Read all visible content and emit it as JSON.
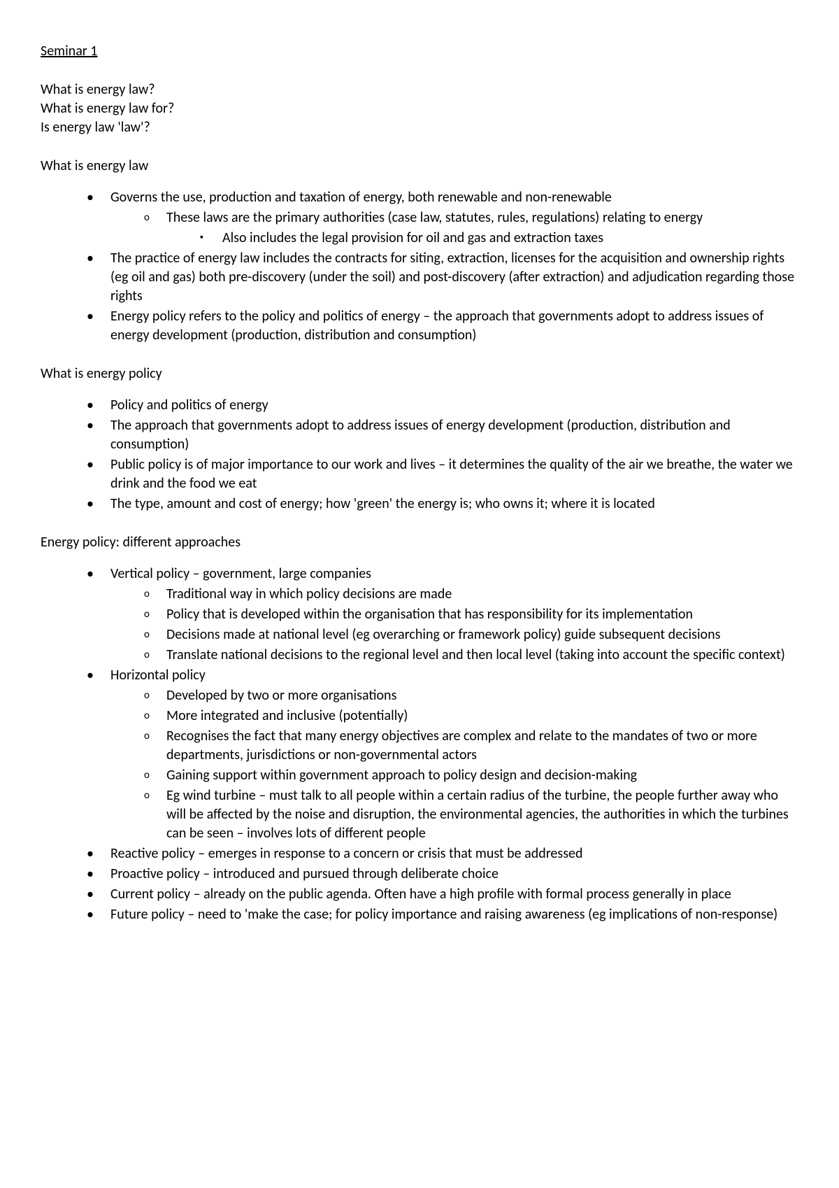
{
  "title": "Seminar 1",
  "intro": {
    "line1": "What is energy law?",
    "line2": "What is energy law for?",
    "line3": "Is energy law 'law'?"
  },
  "section1": {
    "heading": "What is energy law",
    "items": [
      {
        "text": "Governs the use, production and taxation of energy, both renewable and non-renewable",
        "sub": [
          {
            "text": "These laws are the primary authorities (case law, statutes, rules, regulations) relating to energy",
            "sub": [
              {
                "text": "Also includes the legal provision for oil and gas and extraction taxes"
              }
            ]
          }
        ]
      },
      {
        "text": "The practice of energy law includes the contracts for siting, extraction, licenses for the acquisition and ownership rights (eg oil and gas) both pre-discovery (under the soil) and post-discovery (after extraction) and adjudication regarding those rights"
      },
      {
        "text": "Energy policy refers to the policy and politics of energy – the approach that governments adopt to address issues of energy development (production, distribution and consumption)"
      }
    ]
  },
  "section2": {
    "heading": "What is energy policy",
    "items": [
      {
        "text": "Policy and politics of energy"
      },
      {
        "text": "The approach that governments adopt to address issues of energy development (production, distribution and consumption)"
      },
      {
        "text": "Public policy is of major importance to our work and lives – it determines the quality of the air we breathe, the water we drink and the food we eat"
      },
      {
        "text": "The type, amount and cost of energy; how 'green' the energy is; who owns it; where it is located"
      }
    ]
  },
  "section3": {
    "heading": "Energy policy: different approaches",
    "items": [
      {
        "text": "Vertical policy – government, large companies",
        "sub": [
          {
            "text": "Traditional way in which policy decisions are made"
          },
          {
            "text": "Policy that is developed within the organisation that has responsibility for its implementation"
          },
          {
            "text": "Decisions made at national level (eg overarching or framework policy) guide subsequent decisions"
          },
          {
            "text": "Translate national decisions to the regional level and then local level (taking into account the specific context)"
          }
        ]
      },
      {
        "text": "Horizontal policy",
        "sub": [
          {
            "text": "Developed by two or more organisations"
          },
          {
            "text": "More integrated and inclusive (potentially)"
          },
          {
            "text": "Recognises the fact that many energy objectives are complex and relate to the mandates of two or more departments, jurisdictions or non-governmental actors"
          },
          {
            "text": "Gaining support within government approach to policy design and decision-making"
          },
          {
            "text": "Eg wind turbine – must talk to all people within a certain radius of the turbine, the people further away who will be affected by the noise and disruption, the environmental agencies, the authorities in which the turbines can be seen – involves lots of different people"
          }
        ]
      },
      {
        "text": "Reactive policy – emerges in response to a concern or crisis that must be addressed"
      },
      {
        "text": "Proactive policy – introduced and pursued through deliberate choice"
      },
      {
        "text": "Current policy – already on the public agenda. Often have a high profile with formal process generally in place"
      },
      {
        "text": "Future policy – need to 'make the case; for policy importance and raising awareness (eg implications of non-response)"
      }
    ]
  }
}
